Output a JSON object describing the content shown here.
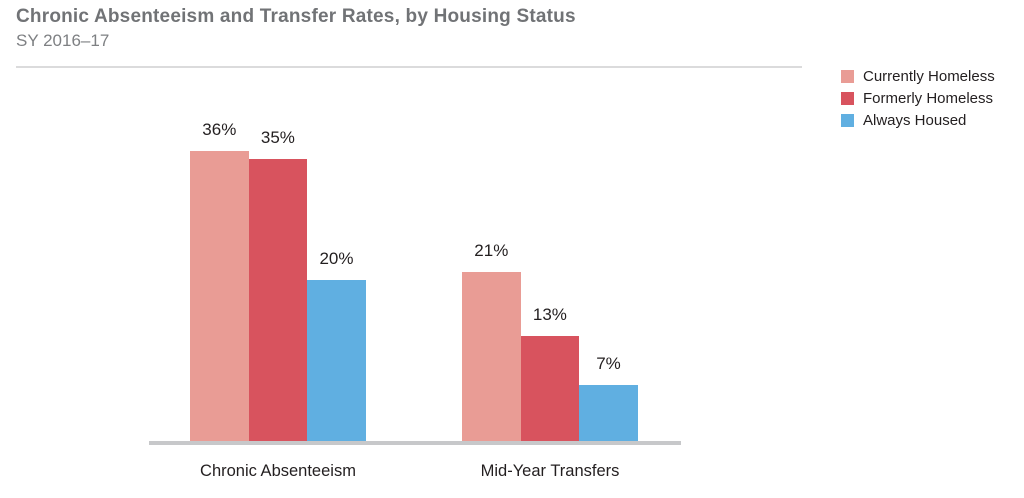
{
  "chart_data": {
    "type": "bar",
    "title": "Chronic Absenteeism and Transfer Rates, by Housing Status",
    "subtitle": "SY 2016–17",
    "categories": [
      "Chronic Absenteeism",
      "Mid-Year Transfers"
    ],
    "series": [
      {
        "name": "Currently Homeless",
        "color": "#E99C95",
        "values": [
          36,
          21
        ]
      },
      {
        "name": "Formerly Homeless",
        "color": "#D8535E",
        "values": [
          35,
          13
        ]
      },
      {
        "name": "Always Housed",
        "color": "#60AFE1",
        "values": [
          20,
          7
        ]
      }
    ],
    "value_suffix": "%",
    "ylim": [
      0,
      40
    ],
    "grid": false,
    "legend_position": "top-right",
    "value_labels": true,
    "colors": {
      "title_text": "#717376",
      "subtitle_text": "#7E8083",
      "label_text": "#231F20",
      "baseline": "#C7C8CA",
      "header_divider": "#DBDBDC"
    }
  }
}
